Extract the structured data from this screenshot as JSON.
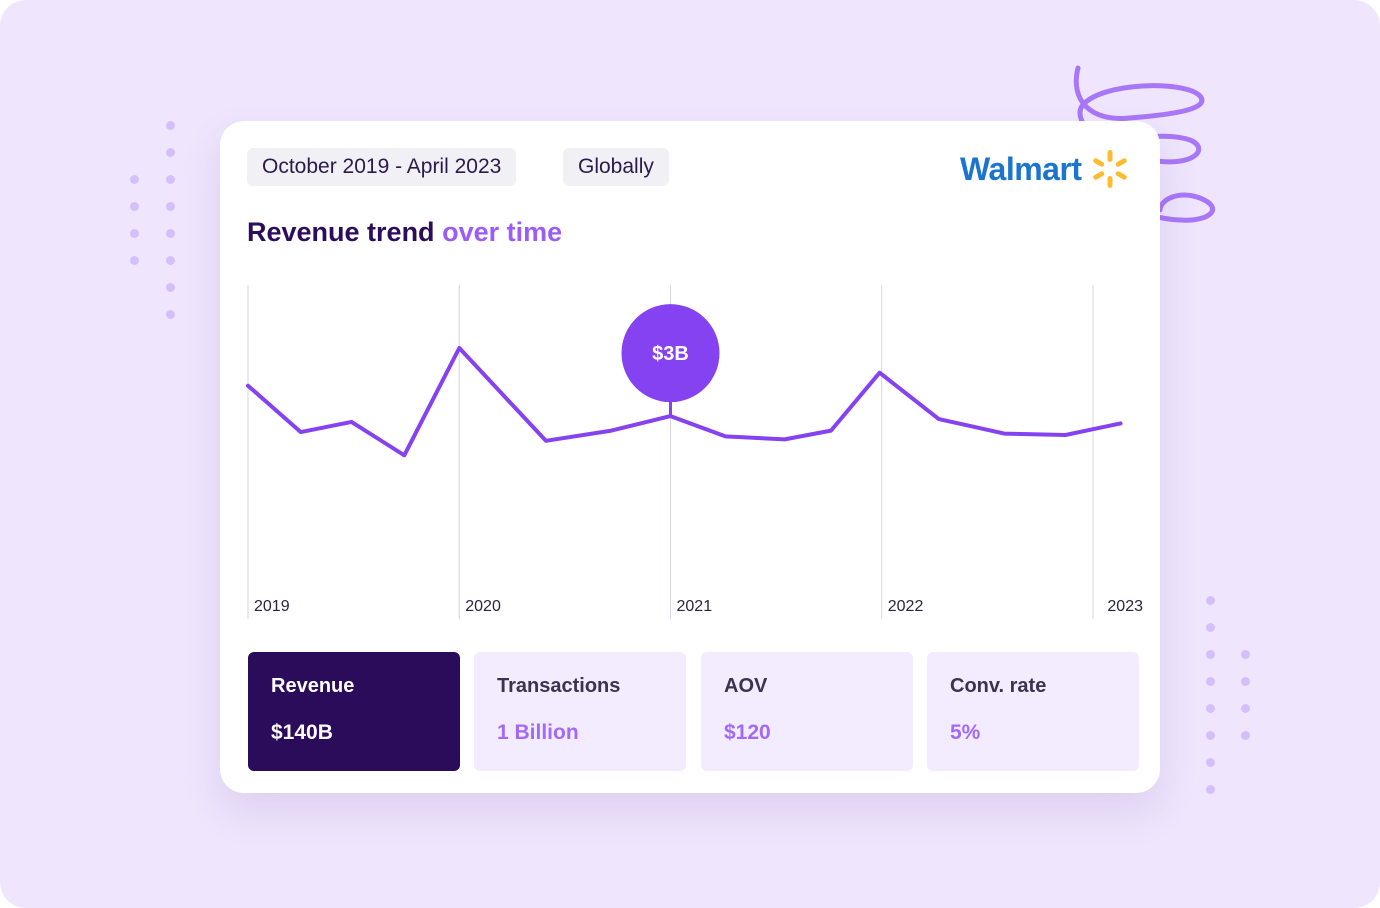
{
  "filters": {
    "date_range": "October 2019 - April 2023",
    "region": "Globally"
  },
  "brand": {
    "name": "Walmart",
    "text_color": "#1b75cf",
    "spark_color": "#fdbb30"
  },
  "title": {
    "main": "Revenue trend",
    "accent": "over time"
  },
  "chart_data": {
    "type": "line",
    "title": "Revenue trend over time",
    "xlabel": "",
    "ylabel": "",
    "x_ticks": [
      "2019",
      "2020",
      "2021",
      "2022",
      "2023"
    ],
    "x_range": [
      2019.0,
      2023.0
    ],
    "grid": "vertical lines at year ticks",
    "series": [
      {
        "color": "#8442f0",
        "points": [
          {
            "x": 2019.0,
            "y": 0.74
          },
          {
            "x": 2019.25,
            "y": 0.42
          },
          {
            "x": 2019.49,
            "y": 0.49
          },
          {
            "x": 2019.74,
            "y": 0.26
          },
          {
            "x": 2020.0,
            "y": 1.0
          },
          {
            "x": 2020.41,
            "y": 0.36
          },
          {
            "x": 2020.72,
            "y": 0.43
          },
          {
            "x": 2021.0,
            "y": 0.53
          },
          {
            "x": 2021.26,
            "y": 0.39
          },
          {
            "x": 2021.54,
            "y": 0.37
          },
          {
            "x": 2021.76,
            "y": 0.43
          },
          {
            "x": 2021.99,
            "y": 0.83
          },
          {
            "x": 2022.27,
            "y": 0.51
          },
          {
            "x": 2022.58,
            "y": 0.41
          },
          {
            "x": 2022.87,
            "y": 0.4
          },
          {
            "x": 2023.0,
            "y": 0.44
          },
          {
            "x": 2023.13,
            "y": 0.48
          }
        ]
      }
    ],
    "annotation": {
      "x": 2021.0,
      "label": "$3B",
      "color": "#8442f0"
    }
  },
  "metrics": [
    {
      "label": "Revenue",
      "value": "$140B",
      "active": true
    },
    {
      "label": "Transactions",
      "value": "1 Billion",
      "active": false
    },
    {
      "label": "AOV",
      "value": "$120",
      "active": false
    },
    {
      "label": "Conv. rate",
      "value": "5%",
      "active": false
    }
  ]
}
